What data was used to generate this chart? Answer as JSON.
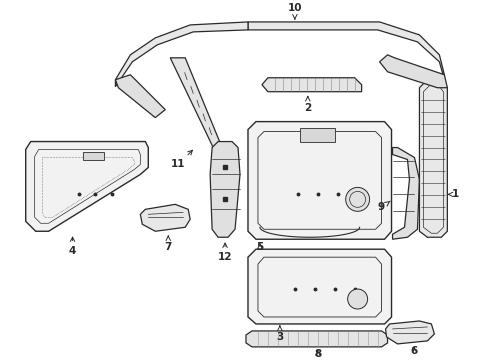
{
  "background_color": "#ffffff",
  "line_color": "#2a2a2a",
  "fig_width": 4.9,
  "fig_height": 3.6,
  "dpi": 100,
  "label_fontsize": 7.5
}
